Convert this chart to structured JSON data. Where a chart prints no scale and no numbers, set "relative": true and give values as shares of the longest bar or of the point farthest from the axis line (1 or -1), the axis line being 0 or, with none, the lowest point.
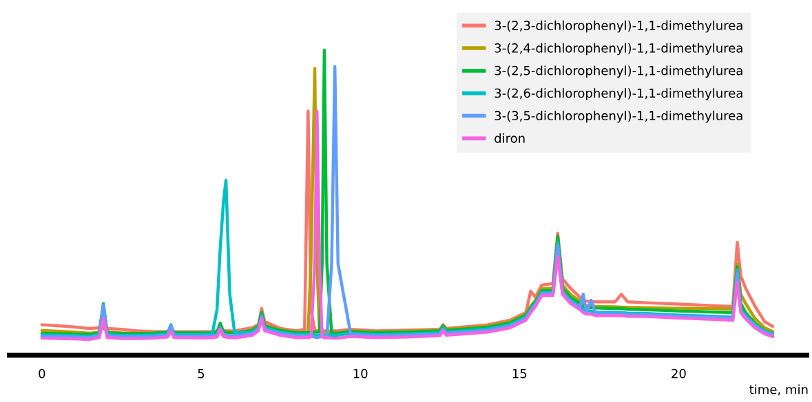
{
  "chart_data": {
    "type": "line",
    "relative": true,
    "xlabel": "time, min",
    "xlim": [
      -1.1,
      24.1
    ],
    "xticks": [
      0,
      5,
      10,
      15,
      20
    ],
    "grid": false,
    "legend": "top right",
    "marker": "none",
    "line_style": "solid",
    "tick_labels": "x",
    "x": [
      0,
      0.5,
      1.0,
      1.5,
      1.8,
      1.93,
      2.05,
      2.5,
      3.0,
      3.5,
      3.95,
      4.05,
      4.15,
      5.0,
      5.35,
      5.5,
      5.6,
      5.7,
      5.78,
      5.9,
      6.05,
      6.6,
      6.8,
      6.9,
      7.0,
      7.5,
      8.0,
      8.25,
      8.36,
      8.45,
      8.57,
      8.64,
      8.72,
      8.8,
      8.87,
      8.95,
      9.1,
      9.2,
      9.3,
      9.7,
      10.5,
      11.5,
      12.5,
      12.6,
      12.7,
      13.5,
      14.0,
      14.7,
      15.2,
      15.35,
      15.5,
      15.7,
      16.05,
      16.2,
      16.35,
      16.6,
      16.9,
      17.0,
      17.1,
      17.25,
      17.4,
      18.0,
      18.2,
      18.4,
      19.0,
      20.0,
      21.0,
      21.7,
      21.84,
      21.95,
      22.1,
      22.4,
      22.7,
      22.95
    ],
    "series": [
      {
        "name": "3-(2,3-dichlorophenyl)-1,1-dimethylurea",
        "color": "#f8766d",
        "values": [
          0.1,
          0.097,
          0.093,
          0.088,
          0.09,
          0.087,
          0.088,
          0.085,
          0.08,
          0.078,
          0.077,
          0.078,
          0.077,
          0.077,
          0.078,
          0.08,
          0.079,
          0.082,
          0.08,
          0.08,
          0.08,
          0.09,
          0.1,
          0.153,
          0.11,
          0.088,
          0.08,
          0.085,
          0.8,
          0.15,
          0.082,
          0.08,
          0.08,
          0.08,
          0.08,
          0.08,
          0.08,
          0.08,
          0.08,
          0.085,
          0.08,
          0.082,
          0.085,
          0.1,
          0.088,
          0.095,
          0.1,
          0.115,
          0.14,
          0.21,
          0.19,
          0.23,
          0.235,
          0.4,
          0.25,
          0.22,
          0.19,
          0.18,
          0.178,
          0.176,
          0.175,
          0.175,
          0.2,
          0.175,
          0.172,
          0.168,
          0.163,
          0.16,
          0.37,
          0.26,
          0.22,
          0.16,
          0.11,
          0.095
        ]
      },
      {
        "name": "3-(2,4-dichlorophenyl)-1,1-dimethylurea",
        "color": "#b79f00",
        "values": [
          0.081,
          0.079,
          0.076,
          0.072,
          0.076,
          0.16,
          0.076,
          0.073,
          0.072,
          0.073,
          0.075,
          0.09,
          0.074,
          0.073,
          0.074,
          0.076,
          0.095,
          0.078,
          0.076,
          0.075,
          0.074,
          0.083,
          0.098,
          0.135,
          0.098,
          0.083,
          0.076,
          0.076,
          0.076,
          0.3,
          0.94,
          0.3,
          0.078,
          0.076,
          0.076,
          0.076,
          0.074,
          0.074,
          0.074,
          0.08,
          0.077,
          0.079,
          0.083,
          0.098,
          0.085,
          0.091,
          0.095,
          0.11,
          0.135,
          0.16,
          0.18,
          0.218,
          0.22,
          0.39,
          0.23,
          0.2,
          0.178,
          0.168,
          0.163,
          0.162,
          0.16,
          0.159,
          0.158,
          0.157,
          0.156,
          0.154,
          0.153,
          0.152,
          0.3,
          0.2,
          0.17,
          0.12,
          0.09,
          0.078
        ]
      },
      {
        "name": "3-(2,5-dichlorophenyl)-1,1-dimethylurea",
        "color": "#00ba38",
        "values": [
          0.072,
          0.071,
          0.07,
          0.068,
          0.074,
          0.169,
          0.074,
          0.071,
          0.071,
          0.072,
          0.076,
          0.095,
          0.074,
          0.073,
          0.074,
          0.076,
          0.105,
          0.078,
          0.076,
          0.074,
          0.073,
          0.081,
          0.096,
          0.14,
          0.096,
          0.081,
          0.074,
          0.074,
          0.074,
          0.076,
          0.076,
          0.076,
          0.076,
          0.3,
          1,
          0.3,
          0.072,
          0.072,
          0.072,
          0.078,
          0.074,
          0.076,
          0.08,
          0.096,
          0.082,
          0.088,
          0.092,
          0.106,
          0.131,
          0.156,
          0.176,
          0.212,
          0.212,
          0.39,
          0.22,
          0.19,
          0.17,
          0.16,
          0.157,
          0.156,
          0.155,
          0.153,
          0.153,
          0.151,
          0.149,
          0.145,
          0.142,
          0.14,
          0.29,
          0.17,
          0.14,
          0.105,
          0.08,
          0.071
        ]
      },
      {
        "name": "3-(2,6-dichlorophenyl)-1,1-dimethylurea",
        "color": "#00bfc4",
        "values": [
          0.066,
          0.065,
          0.064,
          0.062,
          0.068,
          0.16,
          0.068,
          0.065,
          0.065,
          0.066,
          0.07,
          0.1,
          0.068,
          0.067,
          0.07,
          0.15,
          0.35,
          0.5,
          0.574,
          0.2,
          0.075,
          0.075,
          0.09,
          0.13,
          0.09,
          0.075,
          0.068,
          0.068,
          0.068,
          0.068,
          0.066,
          0.066,
          0.066,
          0.066,
          0.066,
          0.066,
          0.066,
          0.066,
          0.066,
          0.072,
          0.068,
          0.07,
          0.074,
          0.09,
          0.076,
          0.082,
          0.086,
          0.1,
          0.125,
          0.15,
          0.17,
          0.206,
          0.206,
          0.37,
          0.21,
          0.18,
          0.16,
          0.15,
          0.145,
          0.145,
          0.14,
          0.14,
          0.14,
          0.138,
          0.137,
          0.132,
          0.128,
          0.125,
          0.28,
          0.15,
          0.13,
          0.1,
          0.08,
          0.071
        ]
      },
      {
        "name": "3-(3,5-dichlorophenyl)-1,1-dimethylurea",
        "color": "#619cff",
        "values": [
          0.062,
          0.061,
          0.06,
          0.058,
          0.064,
          0.165,
          0.064,
          0.061,
          0.061,
          0.062,
          0.066,
          0.1,
          0.064,
          0.063,
          0.064,
          0.066,
          0.09,
          0.068,
          0.066,
          0.064,
          0.063,
          0.071,
          0.086,
          0.125,
          0.086,
          0.071,
          0.064,
          0.064,
          0.064,
          0.062,
          0.06,
          0.058,
          0.06,
          0.062,
          0.062,
          0.062,
          0.3,
          0.946,
          0.3,
          0.068,
          0.064,
          0.066,
          0.07,
          0.086,
          0.072,
          0.078,
          0.082,
          0.096,
          0.121,
          0.146,
          0.166,
          0.202,
          0.202,
          0.36,
          0.206,
          0.176,
          0.156,
          0.2,
          0.14,
          0.18,
          0.136,
          0.136,
          0.136,
          0.134,
          0.133,
          0.128,
          0.124,
          0.121,
          0.27,
          0.146,
          0.126,
          0.096,
          0.076,
          0.067
        ]
      },
      {
        "name": "diron",
        "color": "#f564e3",
        "values": [
          0.056,
          0.055,
          0.054,
          0.052,
          0.058,
          0.12,
          0.058,
          0.055,
          0.055,
          0.056,
          0.06,
          0.08,
          0.058,
          0.057,
          0.058,
          0.06,
          0.085,
          0.062,
          0.06,
          0.058,
          0.057,
          0.065,
          0.08,
          0.12,
          0.08,
          0.065,
          0.058,
          0.058,
          0.058,
          0.06,
          0.3,
          0.8,
          0.3,
          0.06,
          0.058,
          0.058,
          0.056,
          0.056,
          0.056,
          0.062,
          0.058,
          0.06,
          0.064,
          0.08,
          0.066,
          0.072,
          0.076,
          0.09,
          0.115,
          0.14,
          0.16,
          0.196,
          0.196,
          0.324,
          0.2,
          0.17,
          0.15,
          0.14,
          0.135,
          0.135,
          0.13,
          0.13,
          0.13,
          0.128,
          0.127,
          0.122,
          0.118,
          0.115,
          0.24,
          0.14,
          0.12,
          0.09,
          0.07,
          0.061
        ]
      }
    ]
  }
}
